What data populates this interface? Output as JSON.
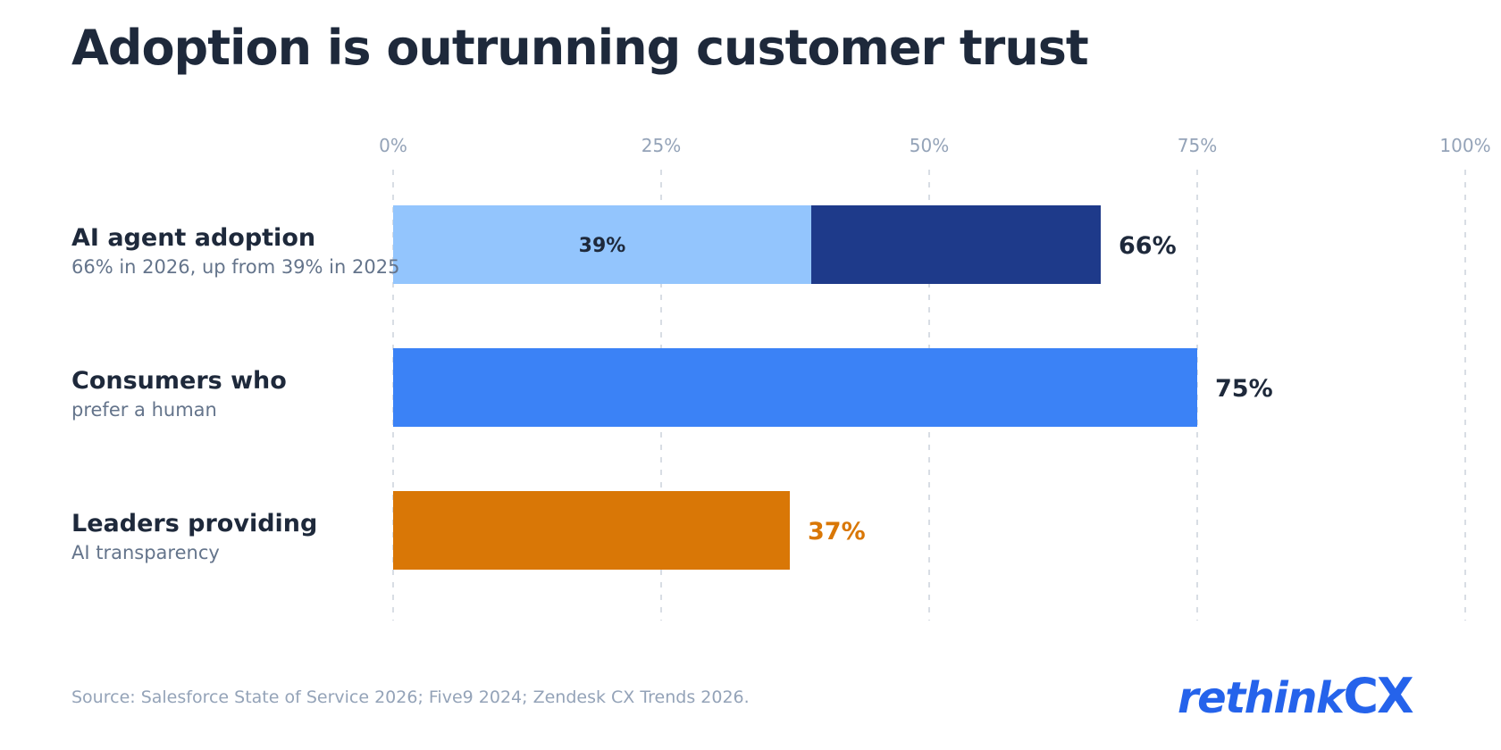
{
  "title": "Adoption is outrunning customer trust",
  "source": "Source: Salesforce State of Service 2026; Five9 2024; Zendesk CX Trends 2026.",
  "logo": {
    "text_main": "rethink",
    "text_accent": "CX",
    "color": "#2563eb"
  },
  "rows": [
    {
      "title": "AI agent adoption",
      "subtitle": "66% in 2026, up from 39% in 2025"
    },
    {
      "title": "Consumers who",
      "subtitle": "prefer a human"
    },
    {
      "title": "Leaders providing",
      "subtitle": "AI transparency"
    }
  ],
  "chart_data": {
    "type": "bar",
    "orientation": "horizontal",
    "xlim": [
      0,
      100
    ],
    "ticks": [
      "0%",
      "25%",
      "50%",
      "75%",
      "100%"
    ],
    "tick_values": [
      0,
      25,
      50,
      75,
      100
    ],
    "grid": true,
    "bars": [
      {
        "segments": [
          {
            "value": 39,
            "label": "39%",
            "color": "#93c5fd"
          },
          {
            "value": 66,
            "color": "#1e3a8a"
          }
        ],
        "total_label": "66%",
        "label_color": "#1e293b"
      },
      {
        "segments": [
          {
            "value": 75,
            "color": "#3b82f6"
          }
        ],
        "total_label": "75%",
        "label_color": "#1e293b"
      },
      {
        "segments": [
          {
            "value": 37,
            "color": "#d97706"
          }
        ],
        "total_label": "37%",
        "label_color": "#d97706"
      }
    ]
  }
}
